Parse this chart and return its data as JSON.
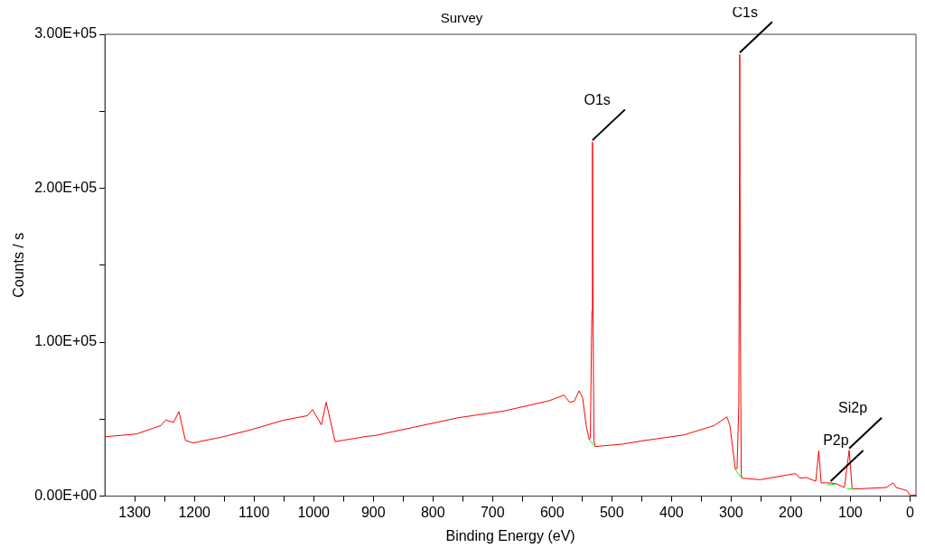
{
  "chart_data": {
    "type": "line",
    "title": "Survey",
    "xlabel": "Binding Energy (eV)",
    "ylabel": "Counts / s",
    "xlim": [
      1350,
      -10
    ],
    "ylim": [
      0,
      300000
    ],
    "xticks": [
      1300,
      {
        "value": 1250,
        "label": null
      },
      1200,
      {
        "value": 1150,
        "label": null
      },
      1100,
      {
        "value": 1050,
        "label": null
      },
      1000,
      {
        "value": 950,
        "label": null
      },
      900,
      {
        "value": 850,
        "label": null
      },
      800,
      {
        "value": 750,
        "label": null
      },
      700,
      {
        "value": 650,
        "label": null
      },
      600,
      {
        "value": 550,
        "label": null
      },
      500,
      {
        "value": 450,
        "label": null
      },
      400,
      {
        "value": 350,
        "label": null
      },
      300,
      {
        "value": 250,
        "label": null
      },
      200,
      {
        "value": 150,
        "label": null
      },
      100,
      {
        "value": 50,
        "label": null
      },
      0
    ],
    "yticks": [
      {
        "value": 0,
        "label": "0.00E+00"
      },
      {
        "value": 50000,
        "label": null
      },
      {
        "value": 100000,
        "label": "1.00E+05"
      },
      {
        "value": 150000,
        "label": null
      },
      {
        "value": 200000,
        "label": "2.00E+05"
      },
      {
        "value": 250000,
        "label": null
      },
      {
        "value": 300000,
        "label": "3.00E+05"
      }
    ],
    "grid": false,
    "legend": false,
    "marker": "none",
    "line_style": "solid",
    "series": [
      {
        "color": "#ff0000",
        "x": [
          1350,
          1297,
          1256,
          1248,
          1235,
          1226,
          1215,
          1202,
          1154,
          1108,
          1051,
          1010,
          1002,
          987,
          979,
          964,
          912,
          897,
          758,
          681,
          605,
          580,
          571,
          563,
          555,
          549,
          543,
          538,
          536,
          533.5,
          532.5,
          531.5,
          530,
          528,
          512,
          482,
          451,
          379,
          328,
          307,
          302,
          293,
          290,
          287,
          285.5,
          284.5,
          283,
          282,
          251,
          192,
          185,
          174,
          158,
          153,
          149,
          133,
          123,
          110,
          102,
          97,
          40,
          28,
          23,
          5,
          0,
          -10
        ],
        "values": [
          38600,
          40400,
          45900,
          49500,
          47900,
          54900,
          36200,
          34600,
          38400,
          42800,
          49300,
          52300,
          56300,
          46300,
          61000,
          35400,
          38800,
          39400,
          50900,
          55300,
          62000,
          65600,
          61000,
          61600,
          68400,
          64000,
          45900,
          36800,
          38000,
          120000,
          230000,
          120000,
          36000,
          32200,
          32800,
          33800,
          35800,
          39800,
          45900,
          51500,
          45900,
          17700,
          18000,
          60000,
          286900,
          120000,
          14000,
          11700,
          10700,
          14700,
          11700,
          12100,
          9700,
          29400,
          8600,
          8600,
          8000,
          5600,
          29800,
          4600,
          5600,
          8600,
          5600,
          3600,
          600,
          600
        ]
      },
      {
        "color": "#00ff00",
        "x": [
          538,
          533,
          528,
          527,
          293,
          288,
          282,
          281,
          138,
          133,
          125,
          124,
          106,
          100,
          95
        ],
        "values": [
          36800,
          34500,
          32200,
          null,
          17700,
          14500,
          11700,
          null,
          7600,
          7800,
          7400,
          null,
          5000,
          4800,
          4600
        ]
      }
    ],
    "annotations": [
      {
        "text": "O1s",
        "x": 532.5,
        "y": 230000
      },
      {
        "text": "C1s",
        "x": 285.5,
        "y": 286900
      },
      {
        "text": "P2p",
        "x": 133,
        "y": 8600
      },
      {
        "text": "Si2p",
        "x": 102,
        "y": 29800
      }
    ]
  }
}
